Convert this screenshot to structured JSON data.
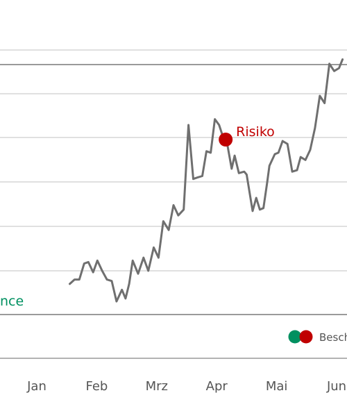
{
  "chart_data": {
    "type": "line",
    "title": "",
    "xlabel": "",
    "ylabel": "",
    "x_ticks": [
      "Jan",
      "Feb",
      "Mrz",
      "Apr",
      "Mai",
      "Jun"
    ],
    "grid": true,
    "series": [
      {
        "color": "#6f6f6f",
        "x": [
          0.55,
          0.63,
          0.71,
          0.79,
          0.86,
          0.94,
          1.01,
          1.09,
          1.17,
          1.25,
          1.33,
          1.42,
          1.48,
          1.54,
          1.6,
          1.69,
          1.78,
          1.86,
          1.95,
          2.03,
          2.11,
          2.2,
          2.28,
          2.36,
          2.45,
          2.53,
          2.61,
          2.68,
          2.76,
          2.83,
          2.9,
          2.97,
          3.04,
          3.12,
          3.18,
          3.25,
          3.3,
          3.37,
          3.46,
          3.5,
          3.6,
          3.66,
          3.72,
          3.78,
          3.84,
          3.88,
          3.97,
          4.03,
          4.1,
          4.18,
          4.26,
          4.34,
          4.4,
          4.48,
          4.56,
          4.64,
          4.72,
          4.8,
          4.88,
          4.96,
          5.04,
          5.1
        ],
        "y": [
          21,
          24,
          24,
          35,
          36,
          29,
          37,
          30,
          24,
          23,
          9,
          17,
          11,
          21,
          37,
          28,
          39,
          30,
          46,
          39,
          64,
          58,
          75,
          68,
          72,
          130,
          93,
          94,
          95,
          112,
          111,
          134,
          130,
          120,
          116,
          100,
          109,
          97,
          98,
          96,
          71,
          80,
          72,
          73,
          90,
          102,
          110,
          111,
          119,
          117,
          98,
          99,
          108,
          106,
          113,
          128,
          150,
          145,
          172,
          167,
          169,
          175
        ]
      }
    ],
    "annotations": [
      {
        "text": "Risiko",
        "color": "#c00000",
        "x": 3.15,
        "y": 120
      },
      {
        "text": "nce",
        "color": "#009060"
      }
    ],
    "legend": {
      "position": "bottom-right",
      "label": "Besch",
      "colors": [
        "#009060",
        "#c00000"
      ]
    }
  }
}
